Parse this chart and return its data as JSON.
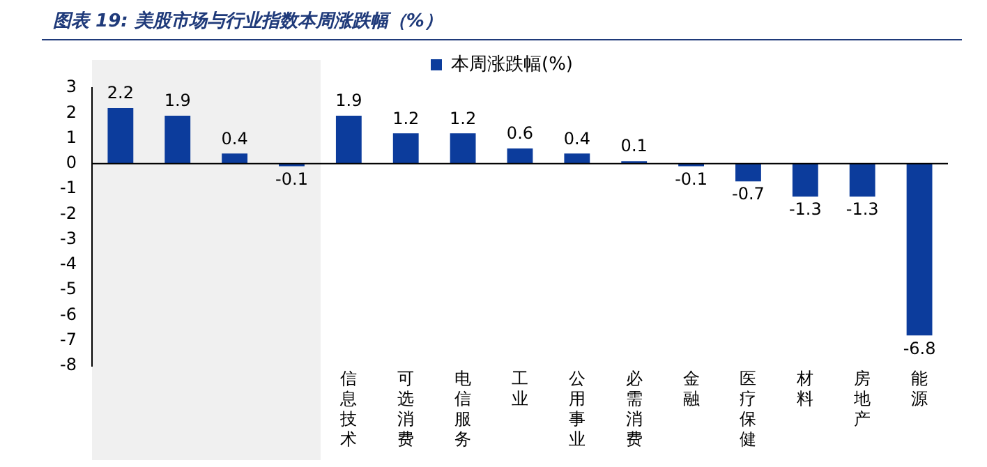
{
  "chart_data": {
    "type": "bar",
    "title": "图表 19:  美股市场与行业指数本周涨跌幅（%）",
    "categories": [
      null,
      null,
      null,
      null,
      "信息技术",
      "可选消费",
      "电信服务",
      "工业",
      "公用事业",
      "必需消费",
      "金融",
      "医疗保健",
      "材料",
      "房地产",
      "能源"
    ],
    "series": [
      {
        "name": "本周涨跌幅(%)",
        "color": "#0c3c9c",
        "values": [
          2.2,
          1.9,
          0.4,
          -0.1,
          1.9,
          1.2,
          1.2,
          0.6,
          0.4,
          0.1,
          -0.1,
          -0.7,
          -1.3,
          -1.3,
          -6.8
        ]
      }
    ],
    "ylim": [
      -8,
      3
    ],
    "yticks": [
      -8,
      -7,
      -6,
      -5,
      -4,
      -3,
      -2,
      -1,
      0,
      1,
      2,
      3
    ],
    "ref_lines": [
      {
        "axis": "y",
        "value": 0,
        "color": "#000000"
      }
    ],
    "data_labels": true,
    "legend": "top",
    "grid": false
  }
}
